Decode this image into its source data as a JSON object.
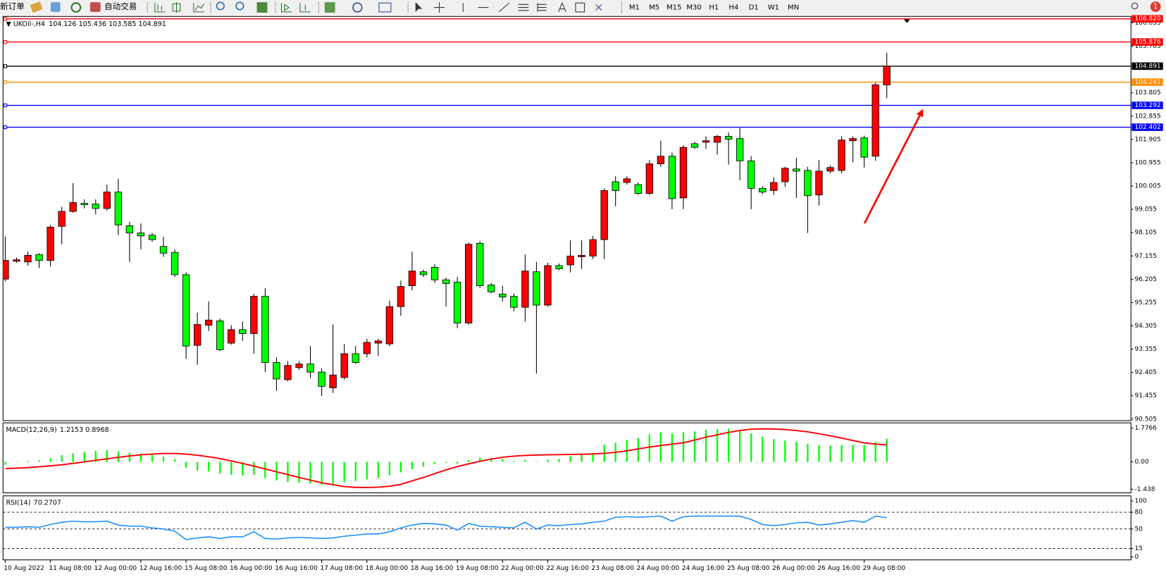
{
  "toolbar": {
    "new_order": "新订单",
    "auto_trade": "自动交易",
    "timeframes": [
      "M1",
      "M5",
      "M15",
      "M30",
      "H1",
      "H4",
      "D1",
      "W1",
      "MN"
    ],
    "notifications": 1
  },
  "chart_data": [
    {
      "type": "candlestick",
      "title": "UKOil-,H4",
      "categories": [
        "10 Aug 2022",
        null,
        null,
        null,
        "11 Aug 08:00",
        null,
        null,
        null,
        "12 Aug 00:00",
        null,
        null,
        null,
        "12 Aug 16:00",
        null,
        null,
        null,
        "15 Aug 08:00",
        null,
        null,
        null,
        "16 Aug 00:00",
        null,
        null,
        null,
        "16 Aug 16:00",
        null,
        null,
        null,
        "17 Aug 08:00",
        null,
        null,
        null,
        "18 Aug 00:00",
        null,
        null,
        null,
        "18 Aug 16:00",
        null,
        null,
        null,
        "19 Aug 08:00",
        null,
        null,
        null,
        "22 Aug 00:00",
        null,
        null,
        null,
        "22 Aug 16:00",
        null,
        null,
        null,
        "23 Aug 08:00",
        null,
        null,
        null,
        "24 Aug 00:00",
        null,
        null,
        null,
        "24 Aug 16:00",
        null,
        null,
        null,
        "25 Aug 08:00",
        null,
        null,
        null,
        "26 Aug 00:00",
        null,
        null,
        null,
        "26 Aug 16:00",
        null,
        null,
        null,
        "29 Aug 08:00",
        null,
        null
      ],
      "open": [
        96.21,
        96.94,
        96.91,
        97.21,
        96.97,
        98.36,
        98.97,
        99.3,
        99.27,
        99.09,
        99.76,
        98.39,
        98.09,
        98.0,
        97.54,
        97.3,
        96.39,
        93.51,
        94.33,
        94.51,
        93.6,
        94.15,
        93.99,
        95.51,
        92.81,
        92.11,
        92.6,
        92.75,
        92.42,
        91.78,
        92.2,
        93.17,
        93.17,
        93.6,
        93.57,
        95.09,
        95.94,
        96.51,
        96.69,
        96.18,
        96.09,
        94.42,
        97.67,
        95.97,
        95.6,
        95.51,
        95.06,
        96.51,
        95.15,
        96.76,
        96.79,
        97.12,
        97.15,
        97.82,
        100.18,
        100.15,
        100.06,
        99.7,
        100.91,
        101.22,
        99.52,
        101.73,
        101.79,
        101.79,
        102.03,
        101.94,
        101.03,
        99.91,
        99.82,
        100.18,
        100.7,
        100.64,
        99.64,
        100.61,
        100.64,
        101.85,
        101.97,
        101.22,
        104.126
      ],
      "high": [
        97.94,
        97.09,
        97.33,
        97.27,
        98.42,
        99.15,
        100.12,
        99.46,
        99.46,
        100.06,
        100.3,
        98.55,
        98.48,
        98.09,
        97.94,
        97.42,
        96.48,
        94.84,
        95.3,
        94.6,
        94.33,
        94.48,
        95.6,
        95.84,
        93.02,
        92.87,
        92.87,
        93.48,
        92.57,
        94.36,
        93.57,
        93.48,
        93.78,
        93.78,
        95.33,
        96.15,
        97.33,
        96.6,
        96.82,
        96.27,
        96.3,
        97.7,
        97.76,
        96.06,
        95.94,
        95.63,
        97.21,
        96.91,
        96.88,
        96.85,
        97.79,
        97.79,
        97.97,
        99.91,
        100.4,
        100.4,
        100.15,
        101.06,
        101.85,
        101.37,
        101.67,
        101.82,
        102.03,
        102.09,
        102.19,
        102.37,
        101.22,
        100.0,
        100.37,
        100.79,
        101.15,
        100.79,
        101.06,
        100.85,
        102.03,
        102.03,
        102.06,
        104.22,
        105.436
      ],
      "low": [
        96.12,
        96.88,
        96.76,
        96.66,
        96.72,
        97.63,
        98.91,
        99.09,
        98.85,
        99.0,
        98.0,
        96.91,
        97.42,
        97.73,
        97.12,
        96.3,
        92.96,
        92.72,
        94.09,
        93.27,
        93.54,
        93.69,
        93.17,
        92.42,
        91.66,
        92.05,
        92.51,
        92.17,
        91.45,
        91.57,
        92.11,
        92.75,
        93.02,
        93.08,
        93.48,
        94.72,
        95.75,
        96.3,
        96.06,
        95.09,
        94.21,
        94.36,
        95.84,
        95.63,
        95.3,
        94.9,
        94.48,
        92.36,
        95.09,
        96.57,
        96.48,
        96.63,
        97.03,
        97.03,
        99.18,
        100.06,
        99.64,
        99.64,
        100.79,
        99.06,
        99.06,
        101.52,
        101.52,
        101.28,
        100.88,
        100.24,
        99.06,
        99.67,
        99.64,
        99.97,
        99.52,
        98.09,
        99.21,
        100.52,
        100.52,
        100.97,
        100.76,
        101.03,
        103.585
      ],
      "close": [
        96.97,
        97.0,
        97.18,
        96.97,
        98.33,
        98.97,
        99.33,
        99.24,
        99.09,
        99.76,
        98.42,
        98.09,
        97.97,
        97.82,
        97.27,
        96.39,
        93.48,
        94.36,
        94.54,
        93.33,
        94.15,
        93.99,
        95.51,
        92.81,
        92.14,
        92.69,
        92.75,
        92.42,
        91.84,
        92.3,
        93.17,
        92.81,
        93.63,
        93.69,
        95.09,
        95.91,
        96.54,
        96.39,
        96.18,
        96.03,
        94.42,
        97.63,
        95.94,
        95.69,
        95.48,
        95.06,
        96.54,
        95.15,
        96.76,
        96.63,
        97.15,
        97.18,
        97.82,
        99.82,
        99.82,
        100.3,
        99.7,
        100.91,
        101.22,
        99.49,
        101.58,
        101.58,
        101.85,
        102.03,
        101.91,
        101.03,
        99.91,
        99.76,
        100.15,
        100.73,
        100.61,
        99.61,
        100.61,
        100.76,
        101.88,
        101.94,
        101.18,
        104.13,
        104.891
      ],
      "up_color": "#ff0000",
      "down_color": "#00ff00",
      "ylim": [
        90.44,
        106.92
      ],
      "yticks": [
        106.655,
        105.705,
        103.805,
        102.855,
        101.905,
        100.955,
        100.005,
        99.055,
        98.105,
        97.155,
        96.205,
        95.255,
        94.305,
        93.355,
        92.405,
        91.455,
        90.505
      ],
      "levels": [
        {
          "value": 106.82,
          "label": "106.820",
          "color": "#ff0000"
        },
        {
          "value": 105.876,
          "color": "#ff0000"
        },
        {
          "value": 104.891,
          "color": "#000000"
        },
        {
          "value": 104.241,
          "color": "#ff8c00"
        },
        {
          "value": 103.292,
          "color": "#0000ff"
        },
        {
          "value": 102.402,
          "color": "#0000ff"
        }
      ]
    },
    {
      "type": "macd",
      "title": "MACD(12,26,9)",
      "series": [
        {
          "type": "bar",
          "color": "#00ff00",
          "values": [
            -0.15,
            0.02,
            0.05,
            0.08,
            0.2,
            0.35,
            0.45,
            0.52,
            0.58,
            0.62,
            0.55,
            0.48,
            0.45,
            0.4,
            0.28,
            0.12,
            -0.3,
            -0.45,
            -0.5,
            -0.62,
            -0.68,
            -0.72,
            -0.68,
            -0.85,
            -0.98,
            -1.05,
            -1.1,
            -1.15,
            -1.22,
            -1.18,
            -1.08,
            -1.0,
            -0.92,
            -0.85,
            -0.7,
            -0.55,
            -0.38,
            -0.25,
            -0.12,
            -0.05,
            -0.1,
            0.1,
            0.22,
            0.2,
            0.15,
            0.05,
            0.1,
            0.02,
            0.12,
            0.15,
            0.3,
            0.38,
            0.45,
            0.9,
            1.0,
            1.15,
            1.25,
            1.45,
            1.55,
            1.5,
            1.55,
            1.6,
            1.68,
            1.72,
            1.75,
            1.68,
            1.5,
            1.32,
            1.2,
            1.12,
            1.05,
            0.95,
            0.88,
            0.85,
            0.88,
            0.9,
            0.88,
            1.05,
            1.2153
          ]
        },
        {
          "type": "line",
          "color": "#ff0000",
          "values": [
            -0.35,
            -0.33,
            -0.3,
            -0.26,
            -0.21,
            -0.15,
            -0.08,
            0.0,
            0.08,
            0.16,
            0.24,
            0.31,
            0.37,
            0.41,
            0.44,
            0.44,
            0.41,
            0.35,
            0.27,
            0.17,
            0.05,
            -0.08,
            -0.22,
            -0.37,
            -0.52,
            -0.67,
            -0.82,
            -0.96,
            -1.1,
            -1.2,
            -1.3,
            -1.34,
            -1.35,
            -1.33,
            -1.28,
            -1.18,
            -1.0,
            -0.82,
            -0.62,
            -0.42,
            -0.25,
            -0.1,
            0.03,
            0.15,
            0.24,
            0.3,
            0.34,
            0.36,
            0.37,
            0.38,
            0.39,
            0.4,
            0.42,
            0.45,
            0.5,
            0.58,
            0.68,
            0.78,
            0.86,
            0.93,
            1.0,
            1.15,
            1.3,
            1.42,
            1.55,
            1.65,
            1.72,
            1.74,
            1.73,
            1.7,
            1.65,
            1.58,
            1.48,
            1.37,
            1.25,
            1.12,
            1.0,
            0.93,
            0.8968
          ]
        }
      ],
      "ylim": [
        -1.63,
        2.05
      ],
      "yticks": [
        1.7766,
        {
          "value": 0,
          "label": "0.00"
        },
        -1.438
      ]
    },
    {
      "type": "line",
      "title": "RSI(14)",
      "series": [
        {
          "color": "#1e90ff",
          "values": [
            53,
            53,
            54,
            53,
            58,
            62,
            64,
            63,
            63,
            64,
            57,
            55,
            55,
            52,
            50,
            46,
            31,
            34,
            36,
            33,
            36,
            36,
            45,
            33,
            32,
            34,
            35,
            34,
            33,
            34,
            37,
            39,
            41,
            41,
            45,
            52,
            57,
            60,
            59,
            57,
            48,
            60,
            55,
            54,
            53,
            52,
            62,
            50,
            57,
            56,
            58,
            59,
            62,
            64,
            71,
            72,
            71,
            72,
            73,
            64,
            72,
            73,
            73,
            73,
            73,
            73,
            67,
            58,
            56,
            58,
            61,
            62,
            57,
            59,
            62,
            65,
            62,
            73,
            70.2707
          ]
        }
      ],
      "ylim": [
        -5.3,
        109.3
      ],
      "yticks": [
        100,
        80,
        50,
        15,
        0
      ],
      "levels": [
        80,
        50,
        15
      ]
    }
  ]
}
